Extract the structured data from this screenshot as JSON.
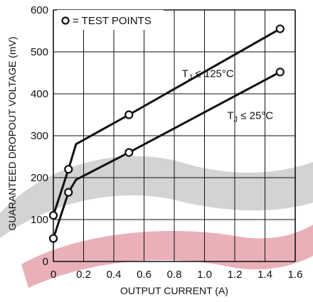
{
  "chart_data": {
    "type": "line",
    "title": "",
    "xlabel": "OUTPUT CURRENT (A)",
    "ylabel": "GUARANTEED DROPOUT VOLTAGE (mV)",
    "xlim": [
      0,
      1.6
    ],
    "ylim": [
      0,
      600
    ],
    "xticks": [
      0,
      0.2,
      0.4,
      0.6,
      0.8,
      1.0,
      1.2,
      1.4,
      1.6
    ],
    "xtick_labels": [
      "0",
      "0.2",
      "0.4",
      "0.6",
      "0.8",
      "1.0",
      "1.2",
      "1.4",
      "1.6"
    ],
    "yticks": [
      0,
      100,
      200,
      300,
      400,
      500,
      600
    ],
    "ytick_labels": [
      "0",
      "100",
      "200",
      "300",
      "400",
      "500",
      "600"
    ],
    "grid": true,
    "legend": {
      "placement": "top-left",
      "label": "= TEST POINTS",
      "marker": "open-circle"
    },
    "series": [
      {
        "annotation": {
          "main": "T",
          "sub": "J",
          "rest": " ≤ 125°C",
          "at": [
            0.85,
            440
          ]
        },
        "line": {
          "x": [
            0,
            0.1,
            0.15,
            0.5,
            1.5
          ],
          "y": [
            110,
            220,
            280,
            350,
            555
          ]
        },
        "test_points": {
          "x": [
            0,
            0.1,
            0.5,
            1.5
          ],
          "y": [
            110,
            220,
            350,
            555
          ]
        }
      },
      {
        "annotation": {
          "main": "T",
          "sub": "J",
          "rest": " ≤ 25°C",
          "at": [
            1.15,
            340
          ]
        },
        "line": {
          "x": [
            0,
            0.1,
            0.15,
            0.5,
            1.5
          ],
          "y": [
            55,
            165,
            195,
            260,
            452
          ]
        },
        "test_points": {
          "x": [
            0,
            0.1,
            0.5,
            1.5
          ],
          "y": [
            55,
            165,
            260,
            452
          ]
        }
      }
    ],
    "colors": {
      "line": "#111111",
      "grid": "#111111",
      "background": "#ffffff"
    }
  }
}
